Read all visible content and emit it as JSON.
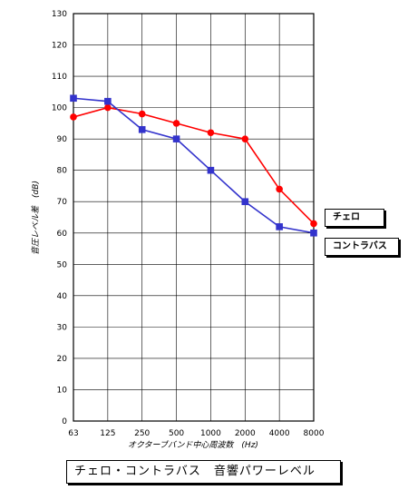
{
  "chart_data": {
    "type": "line",
    "title": "チェロ・コントラバス　音響パワーレベル",
    "xlabel": "オクターブバンド中心周波数　(Hz)",
    "ylabel": "音圧レベル差　(dB)",
    "categories": [
      "63",
      "125",
      "250",
      "500",
      "1000",
      "2000",
      "4000",
      "8000"
    ],
    "ylim": [
      0,
      130
    ],
    "yticks": [
      0,
      10,
      20,
      30,
      40,
      50,
      60,
      70,
      80,
      90,
      100,
      110,
      120,
      130
    ],
    "grid": true,
    "legend_placement": "right",
    "series": [
      {
        "name": "チェロ",
        "values": [
          97,
          100,
          98,
          95,
          92,
          90,
          74,
          63
        ],
        "color": "#ff0000",
        "marker": "circle"
      },
      {
        "name": "コントラバス",
        "values": [
          103,
          102,
          93,
          90,
          80,
          70,
          62,
          60
        ],
        "color": "#3333cc",
        "marker": "square"
      }
    ]
  }
}
